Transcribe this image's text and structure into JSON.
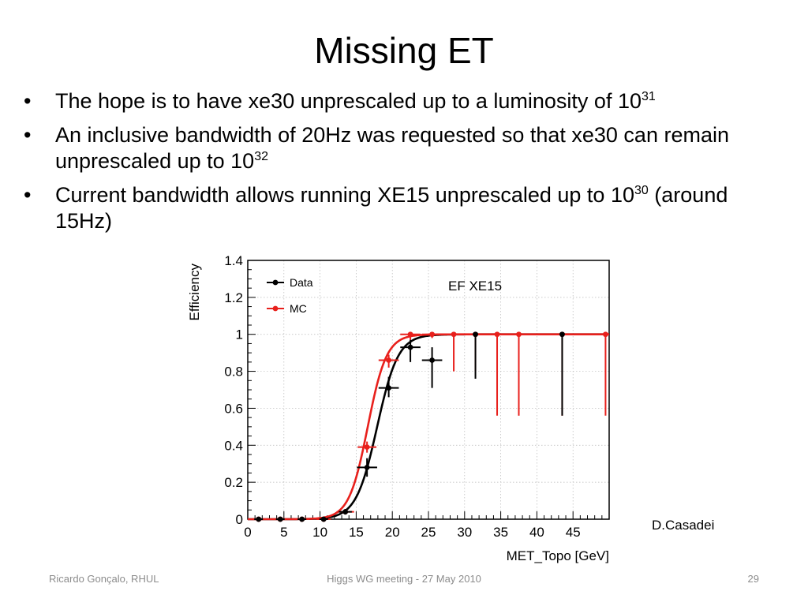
{
  "slide": {
    "title": "Missing ET",
    "bullets": [
      {
        "text": "The hope is to have xe30 unprescaled up to a luminosity of 10",
        "sup": "31"
      },
      {
        "text": "An inclusive bandwidth of 20Hz was requested so that xe30 can remain unprescaled up to 10",
        "sup": "32"
      },
      {
        "text": "Current bandwidth allows running XE15 unprescaled up to 10",
        "sup": "30",
        "tail": " (around 15Hz)"
      }
    ],
    "bullet_glyph": "•",
    "credit": "D.Casadei"
  },
  "footer": {
    "left": "Ricardo Gonçalo, RHUL",
    "center": "Higgs WG meeting - 27 May 2010",
    "right": "29"
  },
  "chart_data": {
    "type": "scatter",
    "title": "EF XE15",
    "xlabel": "MET_Topo [GeV]",
    "ylabel": "Efficiency",
    "xlim": [
      0,
      50
    ],
    "ylim": [
      0,
      1.4
    ],
    "x_ticks": [
      0,
      5,
      10,
      15,
      20,
      25,
      30,
      35,
      40,
      45
    ],
    "y_ticks": [
      0,
      0.2,
      0.4,
      0.6,
      0.8,
      1,
      1.2,
      1.4
    ],
    "y_tick_labels": [
      "0",
      "0.2",
      "0.4",
      "0.6",
      "0.8",
      "1",
      "1.2",
      "1.4"
    ],
    "grid": true,
    "legend_position": "top-left",
    "series": [
      {
        "name": "Data",
        "color": "#000000",
        "points": [
          {
            "x": 1.5,
            "y": 0,
            "xerr": 0.6,
            "ylo": 0,
            "yhi": 0
          },
          {
            "x": 4.5,
            "y": 0,
            "xerr": 0.6,
            "ylo": 0,
            "yhi": 0
          },
          {
            "x": 7.5,
            "y": 0,
            "xerr": 0.6,
            "ylo": 0,
            "yhi": 0
          },
          {
            "x": 10.5,
            "y": 0,
            "xerr": 0.6,
            "ylo": 0,
            "yhi": 0
          },
          {
            "x": 13.5,
            "y": 0.04,
            "xerr": 0.9,
            "ylo": 0.025,
            "yhi": 0.055
          },
          {
            "x": 16.5,
            "y": 0.28,
            "xerr": 1.4,
            "ylo": 0.23,
            "yhi": 0.33
          },
          {
            "x": 19.5,
            "y": 0.71,
            "xerr": 1.4,
            "ylo": 0.66,
            "yhi": 0.77
          },
          {
            "x": 22.5,
            "y": 0.93,
            "xerr": 1.4,
            "ylo": 0.85,
            "yhi": 0.97
          },
          {
            "x": 25.5,
            "y": 0.86,
            "xerr": 1.4,
            "ylo": 0.71,
            "yhi": 0.93
          },
          {
            "x": 31.5,
            "y": 1.0,
            "xerr": 0,
            "ylo": 0.76,
            "yhi": 1.0
          },
          {
            "x": 43.5,
            "y": 1.0,
            "xerr": 0,
            "ylo": 0.56,
            "yhi": 1.0
          }
        ]
      },
      {
        "name": "MC",
        "color": "#e8201c",
        "points": [
          {
            "x": 1.5,
            "y": 0,
            "xerr": 1.0,
            "ylo": 0,
            "yhi": 0
          },
          {
            "x": 4.5,
            "y": 0,
            "xerr": 1.0,
            "ylo": 0,
            "yhi": 0
          },
          {
            "x": 7.5,
            "y": 0,
            "xerr": 1.0,
            "ylo": 0,
            "yhi": 0
          },
          {
            "x": 10.5,
            "y": 0,
            "xerr": 1.0,
            "ylo": 0,
            "yhi": 0
          },
          {
            "x": 13.5,
            "y": 0.04,
            "xerr": 1.2,
            "ylo": 0.03,
            "yhi": 0.05
          },
          {
            "x": 16.5,
            "y": 0.39,
            "xerr": 1.3,
            "ylo": 0.36,
            "yhi": 0.42
          },
          {
            "x": 19.5,
            "y": 0.86,
            "xerr": 1.4,
            "ylo": 0.82,
            "yhi": 0.89
          },
          {
            "x": 22.5,
            "y": 1.0,
            "xerr": 1.4,
            "ylo": 0.97,
            "yhi": 1.0
          },
          {
            "x": 25.5,
            "y": 1.0,
            "xerr": 1.4,
            "ylo": 0.98,
            "yhi": 1.0
          },
          {
            "x": 28.5,
            "y": 1.0,
            "xerr": 0,
            "ylo": 0.8,
            "yhi": 1.0
          },
          {
            "x": 31.5,
            "y": 1.0,
            "xerr": 0,
            "ylo": 0.8,
            "yhi": 1.0
          },
          {
            "x": 34.5,
            "y": 1.0,
            "xerr": 0,
            "ylo": 0.56,
            "yhi": 1.0
          },
          {
            "x": 37.5,
            "y": 1.0,
            "xerr": 0,
            "ylo": 0.56,
            "yhi": 1.0
          },
          {
            "x": 43.5,
            "y": 1.0,
            "xerr": 0,
            "ylo": 0.56,
            "yhi": 1.0
          },
          {
            "x": 49.5,
            "y": 1.0,
            "xerr": 0,
            "ylo": 0.56,
            "yhi": 1.0
          }
        ]
      }
    ],
    "fit_curves": [
      {
        "series": "Data",
        "color": "#000000",
        "midpoint": 17.9,
        "width": 1.45
      },
      {
        "series": "MC",
        "color": "#e8201c",
        "midpoint": 16.6,
        "width": 1.3
      }
    ]
  }
}
